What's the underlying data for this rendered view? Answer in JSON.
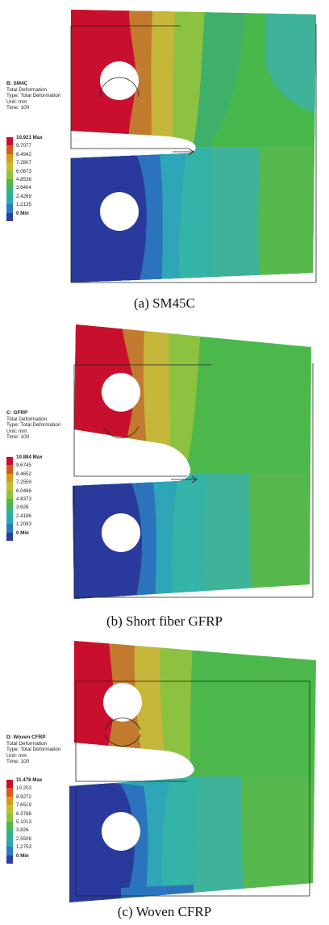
{
  "panels": [
    {
      "caption": "(a) SM45C",
      "info": {
        "title": "B: SM4C",
        "line1": "Total Deformation",
        "line2": "Type: Total Deformation",
        "line3": "Unit: mm",
        "line4": "Time: 100"
      },
      "legend": {
        "max_label": "10.921 Max",
        "levels": [
          "9.7077",
          "8.4942",
          "7.2807",
          "6.0673",
          "4.8538",
          "3.6404",
          "2.4269",
          "1.2135"
        ],
        "min_label": "0 Min"
      }
    },
    {
      "caption": "(b) Short fiber GFRP",
      "info": {
        "title": "C: GFRP",
        "line1": "Total Deformation",
        "line2": "Type: Total Deformation",
        "line3": "Unit: mm",
        "line4": "Time: 100"
      },
      "legend": {
        "max_label": "10.884 Max",
        "levels": [
          "9.6745",
          "8.4652",
          "7.2559",
          "6.0466",
          "4.8373",
          "3.628",
          "2.4186",
          "1.2093"
        ],
        "min_label": "0 Min"
      }
    },
    {
      "caption": "(c) Woven CFRP",
      "info": {
        "title": "D: Woven CFRP",
        "line1": "Total Deformation",
        "line2": "Type: Total Deformation",
        "line3": "Unit: mm",
        "line4": "Time: 100"
      },
      "legend": {
        "max_label": "11.478 Max",
        "levels": [
          "10.203",
          "8.9272",
          "7.6519",
          "6.3766",
          "5.1013",
          "3.826",
          "2.5506",
          "1.2753"
        ],
        "min_label": "0 Min"
      }
    }
  ],
  "colors": {
    "legend_bands": [
      "#c8102e",
      "#d65a1e",
      "#d99b1a",
      "#bfc02a",
      "#8cc43c",
      "#4fb84a",
      "#34b38a",
      "#2aa6b4",
      "#2a7ac0",
      "#2a3f9e"
    ],
    "max": "#c8102e",
    "orange": "#c27a2e",
    "yellow": "#c6b73a",
    "lime": "#9dc23f",
    "green": "#56b84c",
    "teal": "#3db69c",
    "cyan": "#2ea6b8",
    "blue": "#2b74bd",
    "min": "#2a3a9c"
  }
}
